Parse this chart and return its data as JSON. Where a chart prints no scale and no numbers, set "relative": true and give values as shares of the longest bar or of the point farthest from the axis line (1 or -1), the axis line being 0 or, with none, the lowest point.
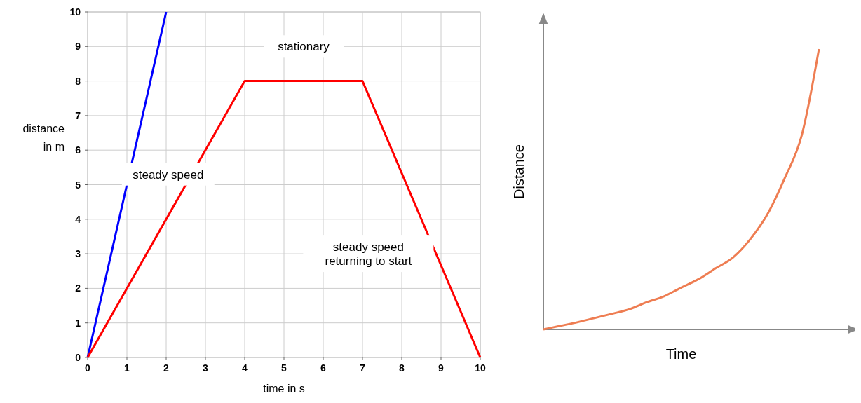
{
  "chart_data": [
    {
      "type": "line",
      "xlabel": "time in s",
      "ylabel": "distance in m",
      "xlim": [
        0,
        10
      ],
      "ylim": [
        0,
        10
      ],
      "xticks": [
        0,
        1,
        2,
        3,
        4,
        5,
        6,
        7,
        8,
        9,
        10
      ],
      "yticks": [
        0,
        1,
        2,
        3,
        4,
        5,
        6,
        7,
        8,
        9,
        10
      ],
      "grid": true,
      "series": [
        {
          "color": "#0000ff",
          "x": [
            0,
            2
          ],
          "values": [
            0,
            10
          ]
        },
        {
          "color": "#ff0000",
          "x": [
            0,
            4,
            7,
            10
          ],
          "values": [
            0,
            8,
            8,
            0
          ]
        }
      ],
      "annotations": [
        "stationary",
        "steady speed",
        "steady speed returning to start"
      ]
    },
    {
      "type": "line",
      "relative": true,
      "xlabel": "Time",
      "ylabel": "Distance",
      "categories": [
        null,
        null,
        null,
        null,
        null,
        null,
        null,
        null,
        null,
        null,
        null,
        null,
        null,
        null,
        null,
        null,
        null
      ],
      "series": [
        {
          "color": "#ee7d52",
          "values": [
            0,
            0.013,
            0.026,
            0.041,
            0.056,
            0.072,
            0.097,
            0.118,
            0.149,
            0.179,
            0.218,
            0.256,
            0.321,
            0.41,
            0.538,
            0.692,
            1
          ]
        }
      ]
    }
  ]
}
